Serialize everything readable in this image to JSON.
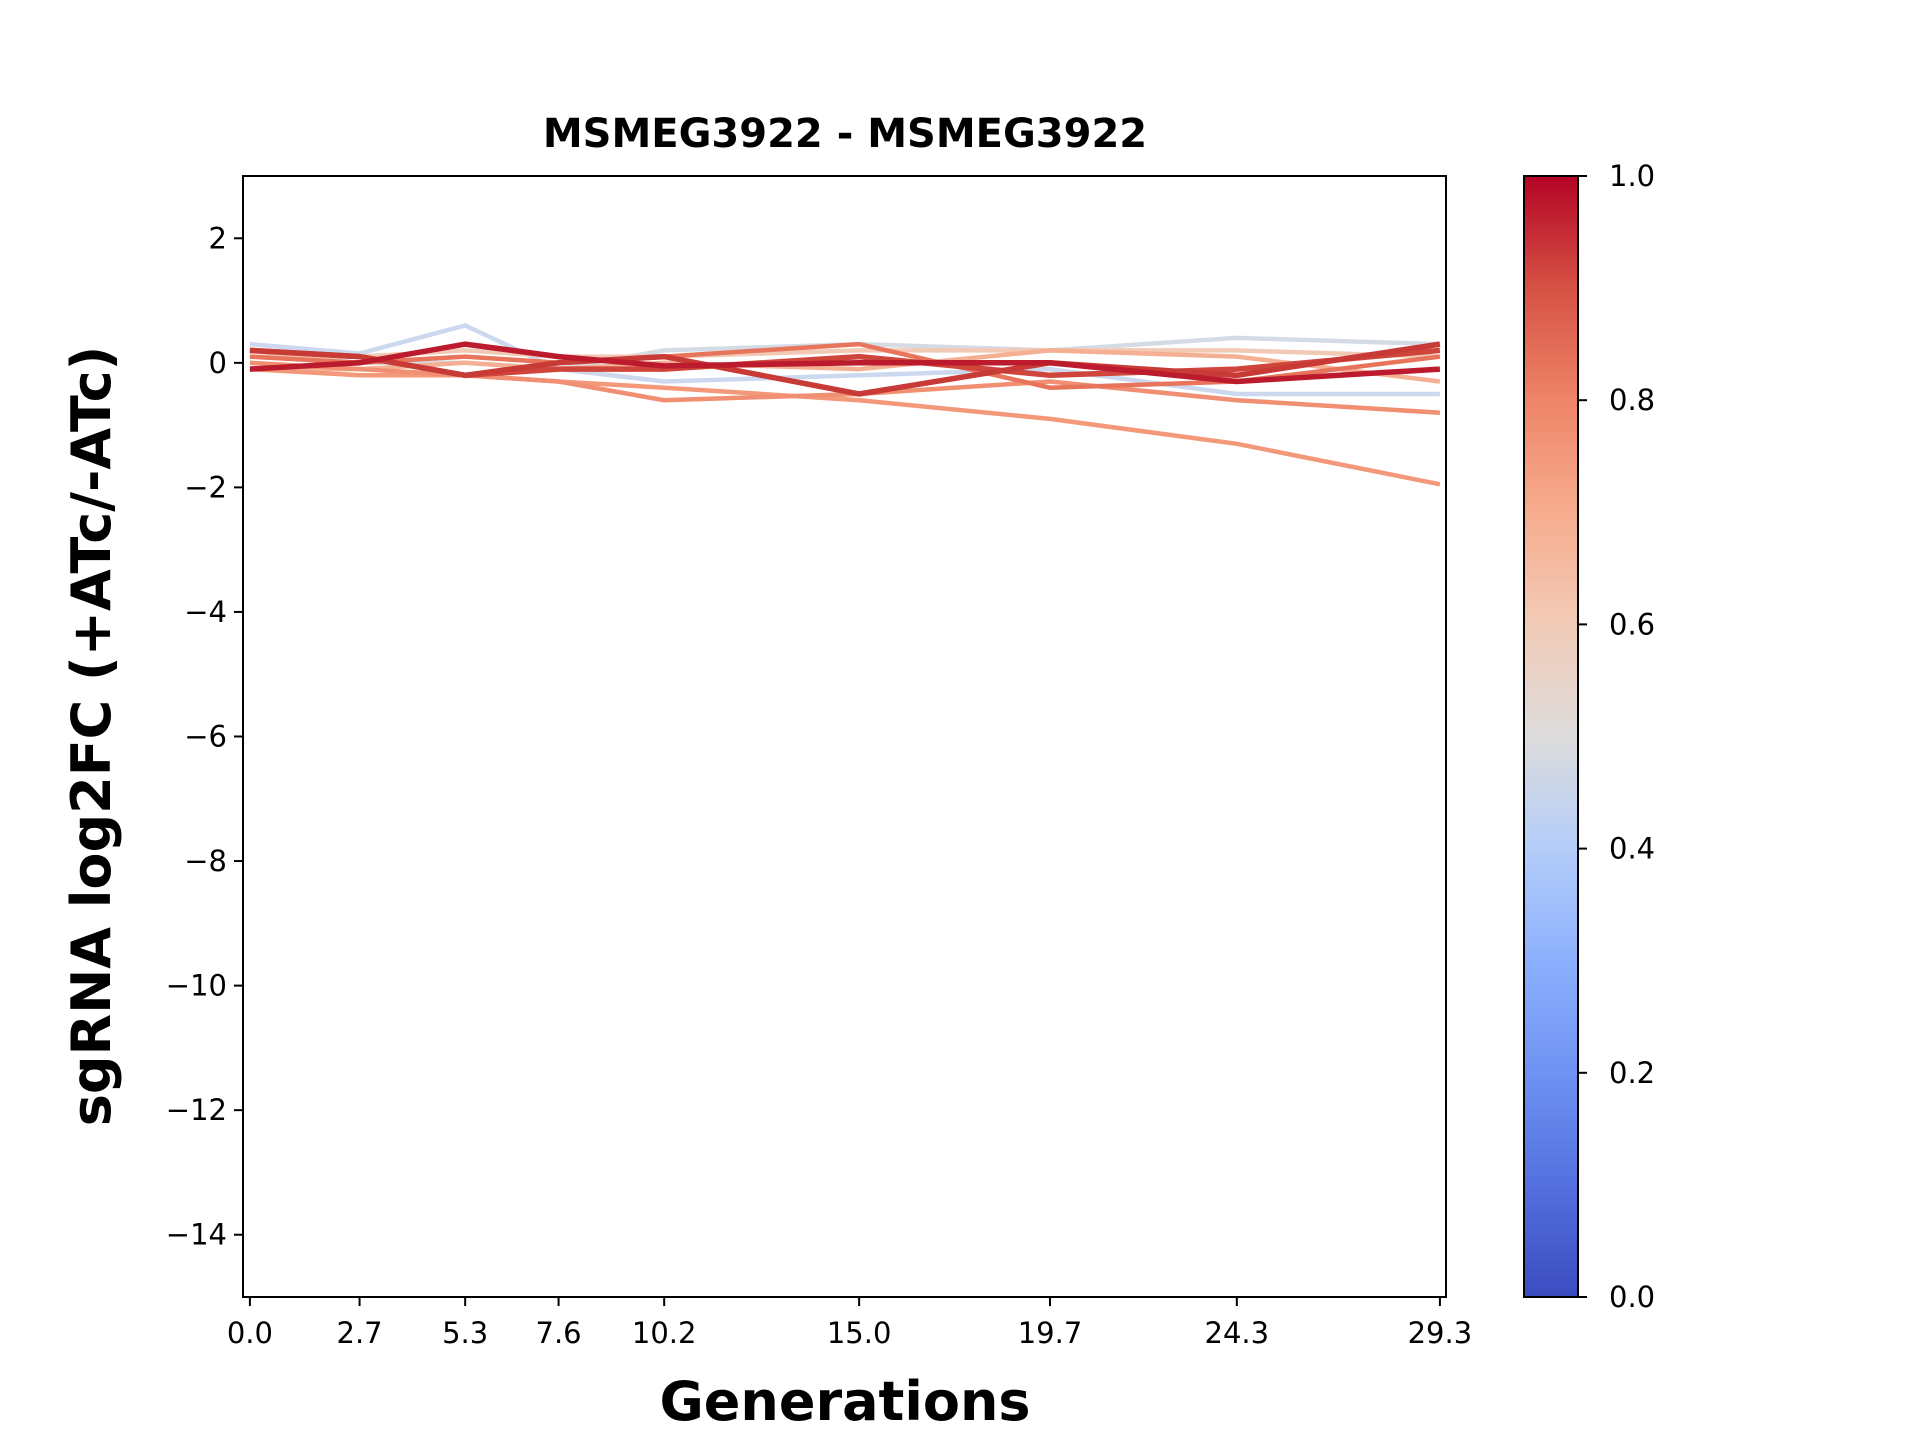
{
  "chart_data": {
    "type": "line",
    "title": "MSMEG3922 - MSMEG3922",
    "xlabel": "Generations",
    "ylabel": "sgRNA log2FC (+ATc/-ATc)",
    "x": [
      0.0,
      2.7,
      5.3,
      7.6,
      10.2,
      15.0,
      19.7,
      24.3,
      29.3
    ],
    "xtick_labels": [
      "0.0",
      "2.7",
      "5.3",
      "7.6",
      "10.2",
      "15.0",
      "19.7",
      "24.3",
      "29.3"
    ],
    "xlim": [
      -0.17,
      29.45
    ],
    "ylim": [
      -15,
      3
    ],
    "yticks": [
      2,
      0,
      -2,
      -4,
      -6,
      -8,
      -10,
      -12,
      -14
    ],
    "ytick_labels": [
      "2",
      "0",
      "−2",
      "−4",
      "−6",
      "−8",
      "−10",
      "−12",
      "−14"
    ],
    "grid": false,
    "colormap": "coolwarm",
    "colorbar": {
      "range": [
        0.0,
        1.0
      ],
      "ticks": [
        0.0,
        0.2,
        0.4,
        0.6,
        0.8,
        1.0
      ],
      "tick_labels": [
        "0.0",
        "0.2",
        "0.4",
        "0.6",
        "0.8",
        "1.0"
      ]
    },
    "series": [
      {
        "color_value": 0.43,
        "color": "#cbd8ee",
        "values": [
          0.3,
          0.15,
          0.6,
          -0.1,
          -0.3,
          -0.2,
          -0.1,
          -0.5,
          -0.5
        ]
      },
      {
        "color_value": 0.47,
        "color": "#d5dbe5",
        "values": [
          0.2,
          0.0,
          0.0,
          -0.1,
          0.2,
          0.3,
          0.2,
          0.4,
          0.3
        ]
      },
      {
        "color_value": 0.62,
        "color": "#f2c9b4",
        "values": [
          0.1,
          0.1,
          0.2,
          0.1,
          0.1,
          0.2,
          0.2,
          0.2,
          0.1
        ]
      },
      {
        "color_value": 0.68,
        "color": "#f5b093",
        "values": [
          -0.1,
          -0.1,
          0.0,
          -0.1,
          0.0,
          -0.1,
          0.2,
          0.1,
          -0.3
        ]
      },
      {
        "color_value": 0.73,
        "color": "#f4987a",
        "values": [
          -0.1,
          -0.2,
          -0.2,
          -0.3,
          -0.4,
          -0.6,
          -0.9,
          -1.3,
          -1.95
        ]
      },
      {
        "color_value": 0.76,
        "color": "#f08f72",
        "values": [
          0.0,
          -0.1,
          -0.2,
          -0.3,
          -0.6,
          -0.5,
          -0.3,
          -0.6,
          -0.8
        ]
      },
      {
        "color_value": 0.82,
        "color": "#e7745b",
        "values": [
          0.1,
          0.0,
          0.1,
          0.0,
          0.1,
          0.3,
          -0.4,
          -0.3,
          0.1
        ]
      },
      {
        "color_value": 0.9,
        "color": "#cf453c",
        "values": [
          0.2,
          0.1,
          -0.2,
          -0.1,
          -0.1,
          0.1,
          -0.2,
          -0.1,
          0.2
        ]
      },
      {
        "color_value": 0.93,
        "color": "#c83a36",
        "values": [
          0.2,
          0.1,
          -0.2,
          0.0,
          0.1,
          -0.5,
          0.0,
          -0.2,
          0.3
        ]
      },
      {
        "color_value": 0.97,
        "color": "#bb1b2c",
        "values": [
          -0.1,
          0.0,
          0.3,
          0.1,
          -0.05,
          0.0,
          0.0,
          -0.3,
          -0.1
        ]
      }
    ]
  }
}
